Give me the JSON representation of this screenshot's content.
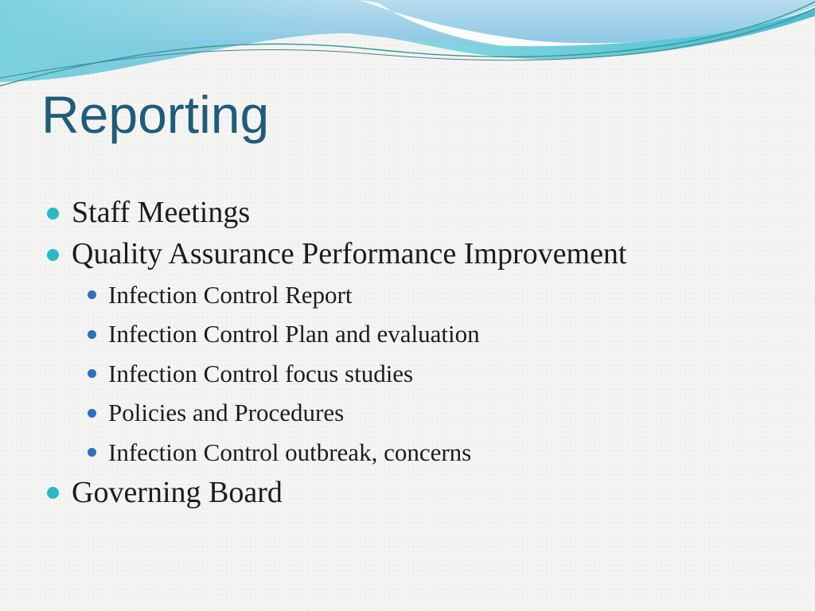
{
  "title": "Reporting",
  "bullets": [
    {
      "level": 1,
      "text": "Staff Meetings"
    },
    {
      "level": 1,
      "text": "Quality Assurance Performance Improvement"
    },
    {
      "level": 2,
      "text": "Infection Control Report"
    },
    {
      "level": 2,
      "text": "Infection Control Plan and evaluation"
    },
    {
      "level": 2,
      "text": "Infection Control focus studies"
    },
    {
      "level": 2,
      "text": "Policies and Procedures"
    },
    {
      "level": 2,
      "text": "Infection Control outbreak, concerns"
    },
    {
      "level": 1,
      "text": "Governing Board"
    }
  ],
  "colors": {
    "title-color": "#1f5c7a",
    "text-color": "#1c1c1c",
    "bullet1-color": "#29b8c5",
    "bullet2-color": "#2d6fc0",
    "wave-blue-light": "#b4daed",
    "wave-blue-deep": "#6db9da",
    "wave-teal": "#7bd2df",
    "wave-teal-strip": "#55c5d4",
    "accent-line-teal": "#2d9c8f",
    "accent-line-gray": "#4b7d8f",
    "background": "#f4f4f2"
  }
}
